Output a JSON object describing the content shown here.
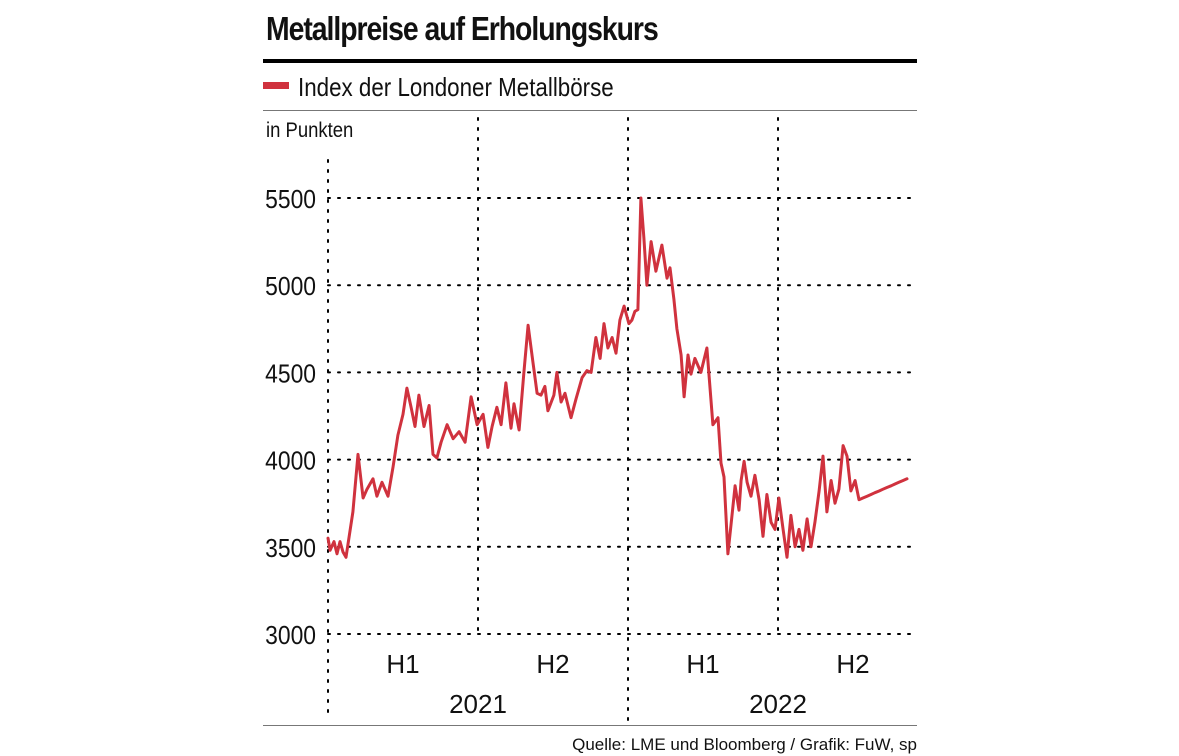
{
  "colors": {
    "line": "#d0323e",
    "grid": "#000000"
  },
  "chart_data": {
    "type": "line",
    "title": "Metallpreise auf Erholungskurs",
    "legend": [
      "Index der Londoner Metallbörse"
    ],
    "ylabel": "in Punkten",
    "ylim": [
      3000,
      5600
    ],
    "yticks": [
      3000,
      3500,
      4000,
      4500,
      5000,
      5500
    ],
    "ytick_labels": [
      "3000",
      "3500",
      "4000",
      "4500",
      "5000",
      "5500"
    ],
    "half_labels": [
      "H1",
      "H2",
      "H1",
      "H2"
    ],
    "year_labels": [
      "2021",
      "2022"
    ],
    "xlim": [
      2021.0,
      2022.96
    ],
    "series": [
      {
        "name": "Index der Londoner Metallbörse",
        "x": [
          2021.0,
          2021.007,
          2021.02,
          2021.03,
          2021.04,
          2021.05,
          2021.06,
          2021.083,
          2021.1,
          2021.117,
          2021.13,
          2021.15,
          2021.163,
          2021.18,
          2021.2,
          2021.217,
          2021.233,
          2021.25,
          2021.263,
          2021.277,
          2021.29,
          2021.303,
          2021.32,
          2021.337,
          2021.35,
          2021.363,
          2021.377,
          2021.397,
          2021.417,
          2021.437,
          2021.457,
          2021.477,
          2021.497,
          2021.517,
          2021.533,
          2021.547,
          2021.563,
          2021.577,
          2021.593,
          2021.61,
          2021.62,
          2021.637,
          2021.653,
          2021.667,
          2021.683,
          2021.697,
          2021.71,
          2021.723,
          2021.733,
          2021.753,
          2021.763,
          2021.777,
          2021.79,
          2021.81,
          2021.827,
          2021.847,
          2021.863,
          2021.877,
          2021.893,
          2021.907,
          2021.92,
          2021.933,
          2021.947,
          2021.96,
          2021.973,
          2021.987,
          2022.003,
          2022.013,
          2022.023,
          2022.033,
          2022.043,
          2022.053,
          2022.063,
          2022.077,
          2022.093,
          2022.113,
          2022.13,
          2022.14,
          2022.153,
          2022.163,
          2022.177,
          2022.187,
          2022.2,
          2022.21,
          2022.223,
          2022.243,
          2022.263,
          2022.283,
          2022.3,
          2022.31,
          2022.32,
          2022.333,
          2022.343,
          2022.357,
          2022.37,
          2022.377,
          2022.387,
          2022.397,
          2022.41,
          2022.423,
          2022.437,
          2022.45,
          2022.463,
          2022.477,
          2022.49,
          2022.503,
          2022.517,
          2022.53,
          2022.543,
          2022.557,
          2022.57,
          2022.583,
          2022.597,
          2022.61,
          2022.623,
          2022.637,
          2022.65,
          2022.663,
          2022.677,
          2022.69,
          2022.703,
          2022.717,
          2022.73,
          2022.743,
          2022.757,
          2022.77,
          2022.783,
          2022.797,
          2022.81,
          2022.823,
          2022.837,
          2022.85,
          2022.863,
          2022.877,
          2022.89,
          2022.903,
          2022.917,
          2022.93
        ],
        "values": [
          3550,
          3480,
          3530,
          3460,
          3530,
          3470,
          3440,
          3700,
          4030,
          3780,
          3830,
          3890,
          3790,
          3870,
          3790,
          3960,
          4140,
          4260,
          4410,
          4300,
          4190,
          4370,
          4190,
          4310,
          4030,
          4010,
          4100,
          4200,
          4120,
          4160,
          4100,
          4360,
          4200,
          4260,
          4070,
          4190,
          4300,
          4200,
          4440,
          4180,
          4320,
          4170,
          4500,
          4770,
          4560,
          4380,
          4370,
          4420,
          4280,
          4370,
          4500,
          4330,
          4380,
          4240,
          4350,
          4470,
          4510,
          4500,
          4700,
          4580,
          4780,
          4640,
          4700,
          4610,
          4800,
          4880,
          4780,
          4800,
          4850,
          4860,
          5500,
          5270,
          5000,
          5250,
          5080,
          5230,
          5040,
          5100,
          4920,
          4750,
          4600,
          4360,
          4600,
          4490,
          4580,
          4500,
          4640,
          4200,
          4240,
          3980,
          3900,
          3460,
          3620,
          3850,
          3710,
          3880,
          3990,
          3870,
          3790,
          3910,
          3770,
          3560,
          3800,
          3640,
          3600,
          3780,
          3600,
          3440,
          3680,
          3500,
          3600,
          3480,
          3660,
          3500,
          3640,
          3820,
          4020,
          3700,
          3880,
          3750,
          3830,
          4080,
          4020,
          3820,
          3880,
          3770,
          3780,
          3790,
          3800,
          3810,
          3820,
          3830,
          3840,
          3850,
          3860,
          3870,
          3880,
          3890
        ]
      }
    ],
    "source": "Quelle: LME und Bloomberg / Grafik: FuW, sp"
  }
}
